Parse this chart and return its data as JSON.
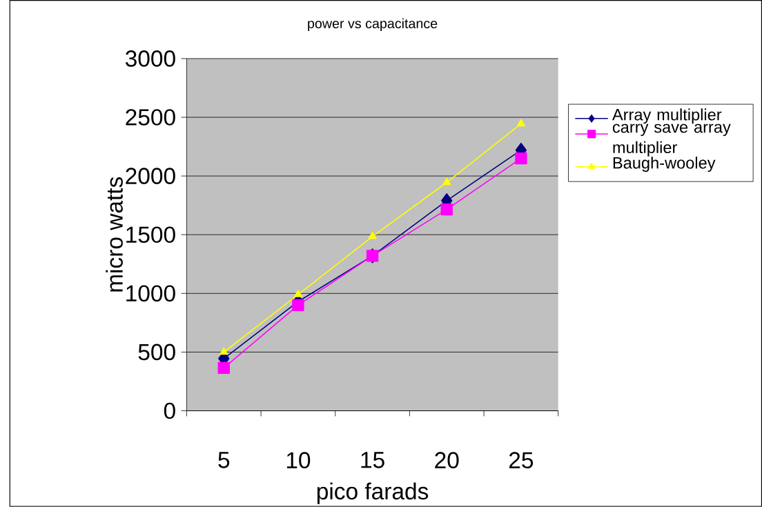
{
  "chart_data": {
    "type": "line",
    "title": "power vs capacitance",
    "xlabel": "pico farads",
    "ylabel": "micro watts",
    "categories": [
      "5",
      "10",
      "15",
      "20",
      "25"
    ],
    "series": [
      {
        "name": "Array multiplier",
        "color": "#000080",
        "marker": "diamond",
        "values": [
          445,
          930,
          1320,
          1790,
          2220
        ]
      },
      {
        "name": "carry save array multiplier",
        "color": "#ff00ff",
        "marker": "square",
        "values": [
          365,
          900,
          1320,
          1715,
          2150
        ]
      },
      {
        "name": "Baugh-wooley",
        "color": "#ffff00",
        "marker": "triangle",
        "values": [
          500,
          990,
          1485,
          1945,
          2445
        ]
      }
    ],
    "ylim": [
      0,
      3000
    ],
    "yticks": [
      0,
      500,
      1000,
      1500,
      2000,
      2500,
      3000
    ],
    "grid": "y",
    "legend": "right"
  }
}
